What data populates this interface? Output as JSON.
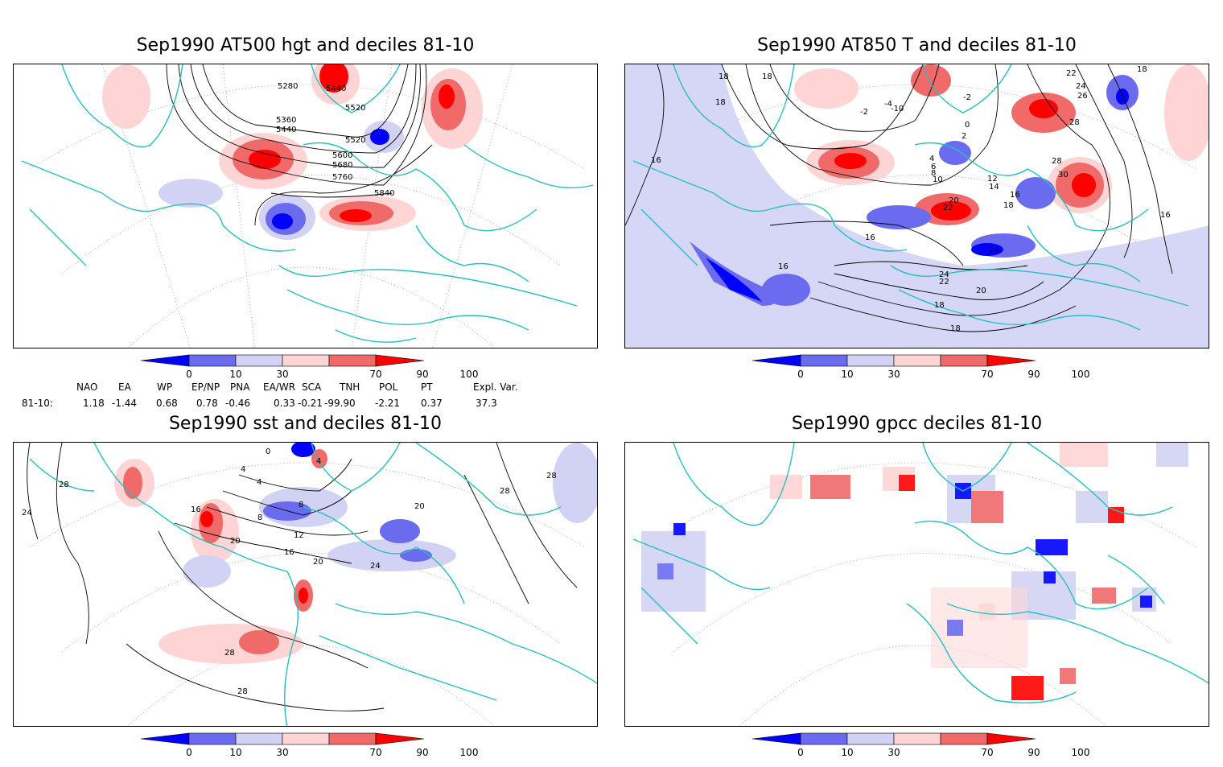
{
  "panels": [
    {
      "title": "Sep1990 AT500 hgt and deciles 81-10",
      "contour_labels": [
        "5280",
        "5360",
        "5440",
        "5520",
        "5440",
        "5520",
        "5600",
        "5680",
        "5760",
        "5840"
      ]
    },
    {
      "title": "Sep1990 AT850 T and deciles 81-10",
      "contour_labels": [
        "18",
        "18",
        "18",
        "16",
        "-2",
        "-4",
        "-10",
        "-2",
        "0",
        "2",
        "4",
        "6",
        "8",
        "10",
        "12",
        "14",
        "16",
        "18",
        "20",
        "22",
        "16",
        "16",
        "24",
        "24",
        "22",
        "20",
        "18",
        "18",
        "22",
        "24",
        "26",
        "28",
        "28",
        "30",
        "16",
        "18"
      ]
    },
    {
      "title": "Sep1990 sst and deciles 81-10",
      "contour_labels": [
        "28",
        "24",
        "4",
        "4",
        "8",
        "8",
        "12",
        "16",
        "20",
        "20",
        "24",
        "28",
        "28",
        "28",
        "0",
        "4",
        "16",
        "20",
        "28"
      ]
    },
    {
      "title": "Sep1990 gpcc deciles 81-10",
      "contour_labels": []
    }
  ],
  "colorbar": {
    "ticks": [
      "0",
      "10",
      "30",
      "70",
      "90",
      "100"
    ],
    "colors": [
      "#0000ff",
      "#6b6bef",
      "#d2d2f5",
      "#ffd4d4",
      "#f06a6a",
      "#ff0000"
    ]
  },
  "indices": {
    "headers": [
      "NAO",
      "EA",
      "WP",
      "EP/NP",
      "PNA",
      "EA/WR",
      "SCA",
      "TNH",
      "POL",
      "PT",
      "Expl. Var."
    ],
    "row_label": "81-10:",
    "values": [
      "1.18",
      "-1.44",
      "0.68",
      "0.78",
      "-0.46",
      "0.33",
      "-0.21",
      "-99.90",
      "-2.21",
      "0.37",
      "37.3"
    ]
  }
}
